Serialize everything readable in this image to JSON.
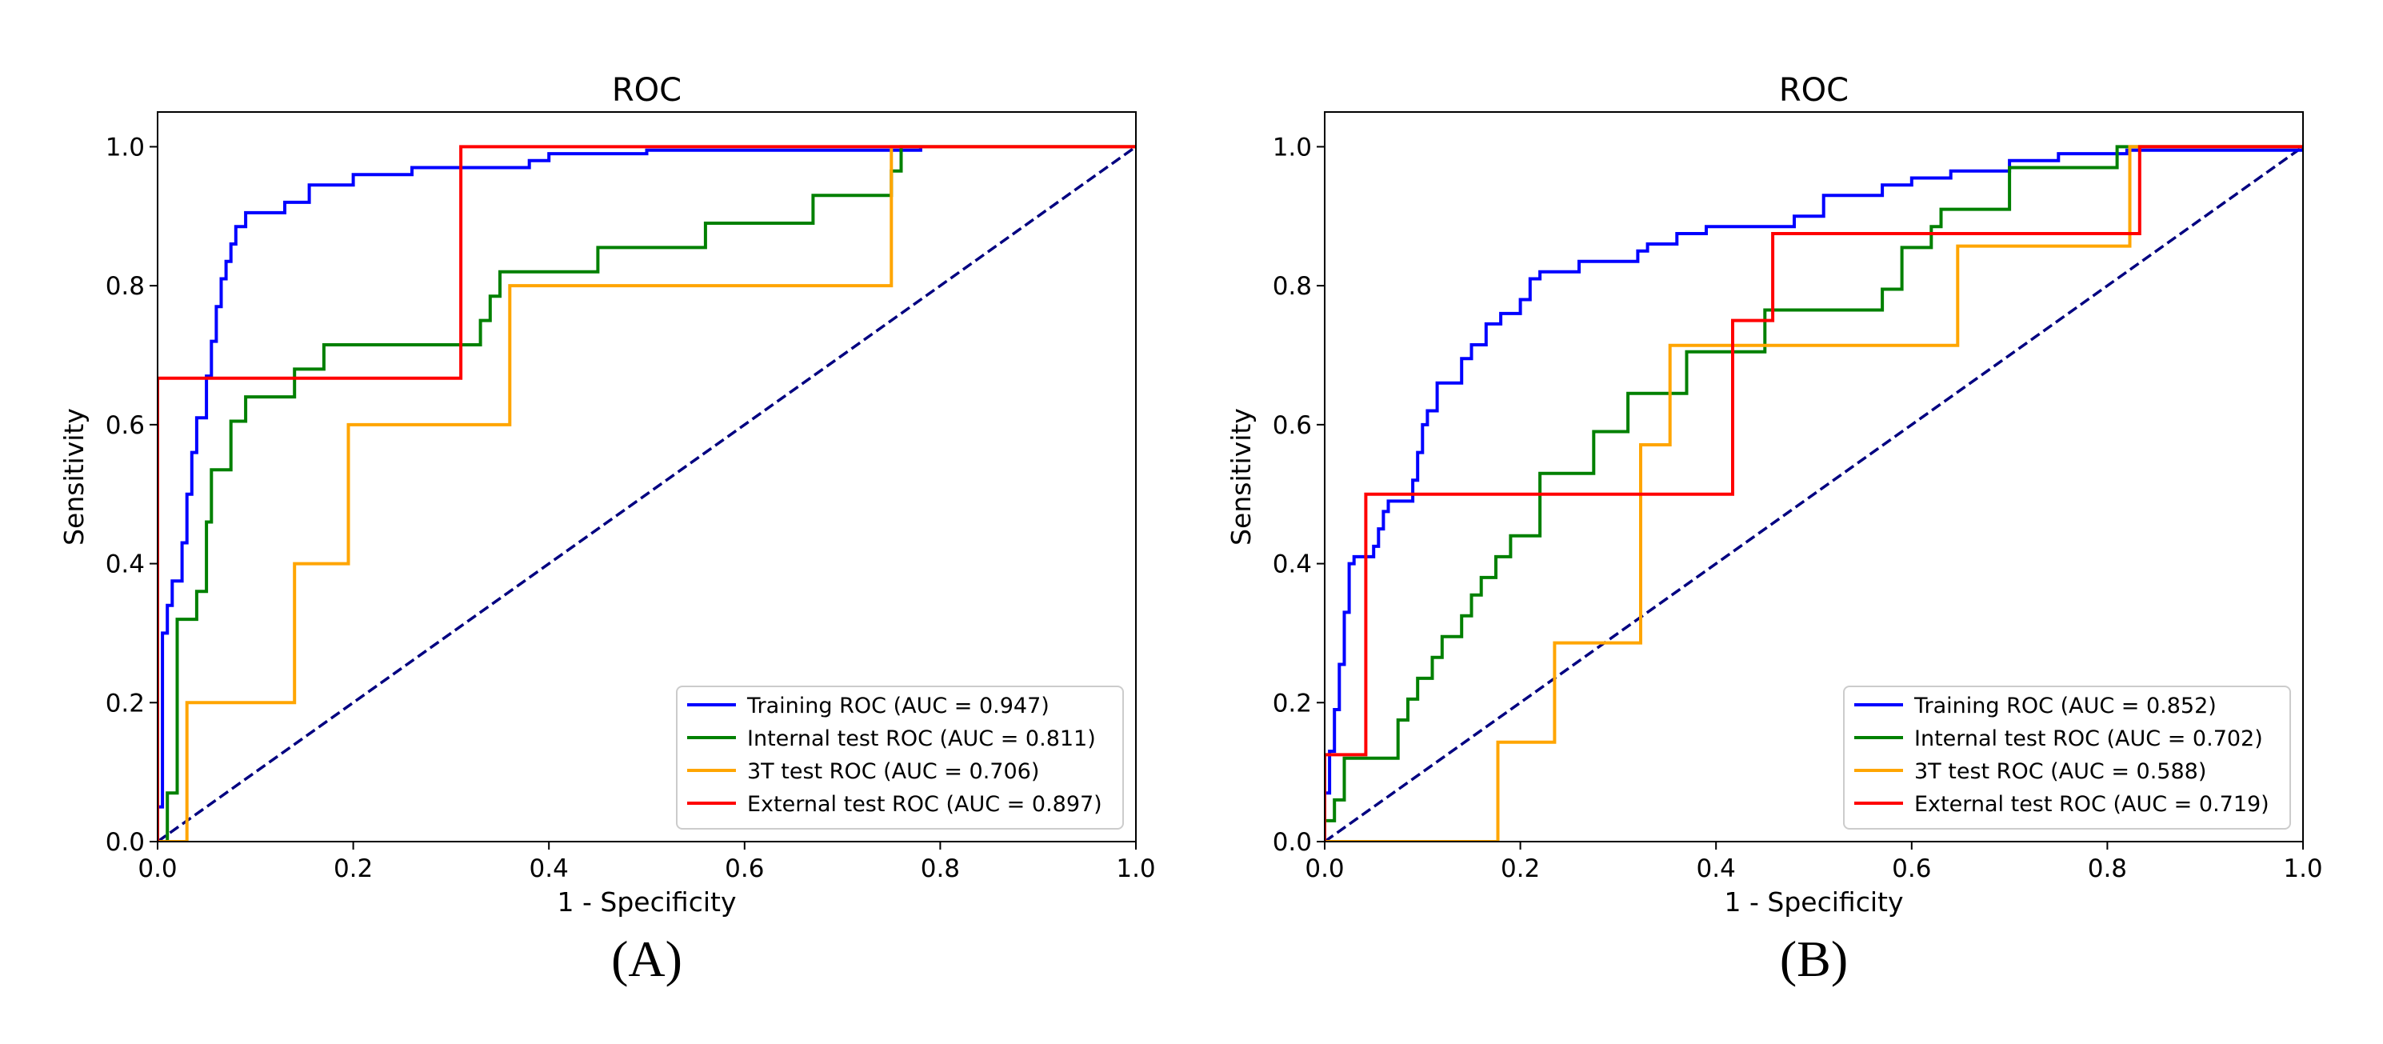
{
  "chart_data": [
    {
      "panel_label": "(A)",
      "type": "line",
      "title": "ROC",
      "xlabel": "1 - Specificity",
      "ylabel": "Sensitivity",
      "xlim": [
        0.0,
        1.0
      ],
      "ylim": [
        0.0,
        1.05
      ],
      "xticks": [
        "0.0",
        "0.2",
        "0.4",
        "0.6",
        "0.8",
        "1.0"
      ],
      "yticks": [
        "0.0",
        "0.2",
        "0.4",
        "0.6",
        "0.8",
        "1.0"
      ],
      "legend_position": "lower-right",
      "reference_line": {
        "name": "chance",
        "x": [
          0,
          1
        ],
        "y": [
          0,
          1
        ],
        "color": "#000080",
        "style": "dashed"
      },
      "series": [
        {
          "name": "Training ROC (AUC = 0.947)",
          "color": "#0000ff",
          "points": [
            [
              0,
              0
            ],
            [
              0,
              0.05
            ],
            [
              0.005,
              0.05
            ],
            [
              0.005,
              0.3
            ],
            [
              0.01,
              0.3
            ],
            [
              0.01,
              0.34
            ],
            [
              0.015,
              0.34
            ],
            [
              0.015,
              0.375
            ],
            [
              0.025,
              0.375
            ],
            [
              0.025,
              0.43
            ],
            [
              0.03,
              0.43
            ],
            [
              0.03,
              0.5
            ],
            [
              0.035,
              0.5
            ],
            [
              0.035,
              0.56
            ],
            [
              0.04,
              0.56
            ],
            [
              0.04,
              0.61
            ],
            [
              0.05,
              0.61
            ],
            [
              0.05,
              0.67
            ],
            [
              0.055,
              0.67
            ],
            [
              0.055,
              0.72
            ],
            [
              0.06,
              0.72
            ],
            [
              0.06,
              0.77
            ],
            [
              0.065,
              0.77
            ],
            [
              0.065,
              0.81
            ],
            [
              0.07,
              0.81
            ],
            [
              0.07,
              0.835
            ],
            [
              0.075,
              0.835
            ],
            [
              0.075,
              0.86
            ],
            [
              0.08,
              0.86
            ],
            [
              0.08,
              0.885
            ],
            [
              0.09,
              0.885
            ],
            [
              0.09,
              0.905
            ],
            [
              0.13,
              0.905
            ],
            [
              0.13,
              0.92
            ],
            [
              0.155,
              0.92
            ],
            [
              0.155,
              0.945
            ],
            [
              0.2,
              0.945
            ],
            [
              0.2,
              0.96
            ],
            [
              0.26,
              0.96
            ],
            [
              0.26,
              0.97
            ],
            [
              0.38,
              0.97
            ],
            [
              0.38,
              0.98
            ],
            [
              0.4,
              0.98
            ],
            [
              0.4,
              0.99
            ],
            [
              0.5,
              0.99
            ],
            [
              0.5,
              0.995
            ],
            [
              0.78,
              0.995
            ],
            [
              0.78,
              1.0
            ]
          ]
        },
        {
          "name": "Internal test ROC (AUC = 0.811)",
          "color": "#008000",
          "points": [
            [
              0,
              0
            ],
            [
              0.01,
              0
            ],
            [
              0.01,
              0.07
            ],
            [
              0.02,
              0.07
            ],
            [
              0.02,
              0.32
            ],
            [
              0.04,
              0.32
            ],
            [
              0.04,
              0.36
            ],
            [
              0.05,
              0.36
            ],
            [
              0.05,
              0.46
            ],
            [
              0.055,
              0.46
            ],
            [
              0.055,
              0.535
            ],
            [
              0.075,
              0.535
            ],
            [
              0.075,
              0.605
            ],
            [
              0.09,
              0.605
            ],
            [
              0.09,
              0.64
            ],
            [
              0.14,
              0.64
            ],
            [
              0.14,
              0.68
            ],
            [
              0.17,
              0.68
            ],
            [
              0.17,
              0.715
            ],
            [
              0.33,
              0.715
            ],
            [
              0.33,
              0.75
            ],
            [
              0.34,
              0.75
            ],
            [
              0.34,
              0.785
            ],
            [
              0.35,
              0.785
            ],
            [
              0.35,
              0.82
            ],
            [
              0.45,
              0.82
            ],
            [
              0.45,
              0.855
            ],
            [
              0.56,
              0.855
            ],
            [
              0.56,
              0.89
            ],
            [
              0.67,
              0.89
            ],
            [
              0.67,
              0.93
            ],
            [
              0.75,
              0.93
            ],
            [
              0.75,
              0.965
            ],
            [
              0.76,
              0.965
            ],
            [
              0.76,
              1.0
            ],
            [
              1.0,
              1.0
            ]
          ]
        },
        {
          "name": "3T test ROC (AUC = 0.706)",
          "color": "#ffa500",
          "points": [
            [
              0,
              0
            ],
            [
              0.03,
              0
            ],
            [
              0.03,
              0.2
            ],
            [
              0.14,
              0.2
            ],
            [
              0.14,
              0.4
            ],
            [
              0.195,
              0.4
            ],
            [
              0.195,
              0.6
            ],
            [
              0.36,
              0.6
            ],
            [
              0.36,
              0.8
            ],
            [
              0.75,
              0.8
            ],
            [
              0.75,
              1.0
            ],
            [
              1.0,
              1.0
            ]
          ]
        },
        {
          "name": "External test ROC (AUC = 0.897)",
          "color": "#ff0000",
          "points": [
            [
              0,
              0
            ],
            [
              0,
              0.667
            ],
            [
              0.31,
              0.667
            ],
            [
              0.31,
              1.0
            ],
            [
              1.0,
              1.0
            ]
          ]
        }
      ]
    },
    {
      "panel_label": "(B)",
      "type": "line",
      "title": "ROC",
      "xlabel": "1 - Specificity",
      "ylabel": "Sensitivity",
      "xlim": [
        0.0,
        1.0
      ],
      "ylim": [
        0.0,
        1.05
      ],
      "xticks": [
        "0.0",
        "0.2",
        "0.4",
        "0.6",
        "0.8",
        "1.0"
      ],
      "yticks": [
        "0.0",
        "0.2",
        "0.4",
        "0.6",
        "0.8",
        "1.0"
      ],
      "legend_position": "lower-right",
      "reference_line": {
        "name": "chance",
        "x": [
          0,
          1
        ],
        "y": [
          0,
          1
        ],
        "color": "#000080",
        "style": "dashed"
      },
      "series": [
        {
          "name": "Training ROC (AUC = 0.852)",
          "color": "#0000ff",
          "points": [
            [
              0,
              0
            ],
            [
              0,
              0.07
            ],
            [
              0.005,
              0.07
            ],
            [
              0.005,
              0.13
            ],
            [
              0.01,
              0.13
            ],
            [
              0.01,
              0.19
            ],
            [
              0.015,
              0.19
            ],
            [
              0.015,
              0.255
            ],
            [
              0.02,
              0.255
            ],
            [
              0.02,
              0.33
            ],
            [
              0.025,
              0.33
            ],
            [
              0.025,
              0.4
            ],
            [
              0.03,
              0.4
            ],
            [
              0.03,
              0.41
            ],
            [
              0.05,
              0.41
            ],
            [
              0.05,
              0.425
            ],
            [
              0.055,
              0.425
            ],
            [
              0.055,
              0.45
            ],
            [
              0.06,
              0.45
            ],
            [
              0.06,
              0.475
            ],
            [
              0.065,
              0.475
            ],
            [
              0.065,
              0.49
            ],
            [
              0.09,
              0.49
            ],
            [
              0.09,
              0.52
            ],
            [
              0.095,
              0.52
            ],
            [
              0.095,
              0.56
            ],
            [
              0.1,
              0.56
            ],
            [
              0.1,
              0.6
            ],
            [
              0.105,
              0.6
            ],
            [
              0.105,
              0.62
            ],
            [
              0.115,
              0.62
            ],
            [
              0.115,
              0.66
            ],
            [
              0.14,
              0.66
            ],
            [
              0.14,
              0.695
            ],
            [
              0.15,
              0.695
            ],
            [
              0.15,
              0.715
            ],
            [
              0.165,
              0.715
            ],
            [
              0.165,
              0.745
            ],
            [
              0.18,
              0.745
            ],
            [
              0.18,
              0.76
            ],
            [
              0.2,
              0.76
            ],
            [
              0.2,
              0.78
            ],
            [
              0.21,
              0.78
            ],
            [
              0.21,
              0.81
            ],
            [
              0.22,
              0.81
            ],
            [
              0.22,
              0.82
            ],
            [
              0.26,
              0.82
            ],
            [
              0.26,
              0.835
            ],
            [
              0.32,
              0.835
            ],
            [
              0.32,
              0.85
            ],
            [
              0.33,
              0.85
            ],
            [
              0.33,
              0.86
            ],
            [
              0.36,
              0.86
            ],
            [
              0.36,
              0.875
            ],
            [
              0.39,
              0.875
            ],
            [
              0.39,
              0.885
            ],
            [
              0.48,
              0.885
            ],
            [
              0.48,
              0.9
            ],
            [
              0.51,
              0.9
            ],
            [
              0.51,
              0.93
            ],
            [
              0.57,
              0.93
            ],
            [
              0.57,
              0.945
            ],
            [
              0.6,
              0.945
            ],
            [
              0.6,
              0.955
            ],
            [
              0.64,
              0.955
            ],
            [
              0.64,
              0.965
            ],
            [
              0.7,
              0.965
            ],
            [
              0.7,
              0.98
            ],
            [
              0.75,
              0.98
            ],
            [
              0.75,
              0.99
            ],
            [
              0.82,
              0.99
            ],
            [
              0.82,
              0.995
            ],
            [
              1.0,
              0.995
            ],
            [
              1.0,
              1.0
            ]
          ]
        },
        {
          "name": "Internal test ROC (AUC = 0.702)",
          "color": "#008000",
          "points": [
            [
              0,
              0
            ],
            [
              0,
              0.03
            ],
            [
              0.01,
              0.03
            ],
            [
              0.01,
              0.06
            ],
            [
              0.02,
              0.06
            ],
            [
              0.02,
              0.12
            ],
            [
              0.075,
              0.12
            ],
            [
              0.075,
              0.175
            ],
            [
              0.085,
              0.175
            ],
            [
              0.085,
              0.205
            ],
            [
              0.095,
              0.205
            ],
            [
              0.095,
              0.235
            ],
            [
              0.11,
              0.235
            ],
            [
              0.11,
              0.265
            ],
            [
              0.12,
              0.265
            ],
            [
              0.12,
              0.295
            ],
            [
              0.14,
              0.295
            ],
            [
              0.14,
              0.325
            ],
            [
              0.15,
              0.325
            ],
            [
              0.15,
              0.355
            ],
            [
              0.16,
              0.355
            ],
            [
              0.16,
              0.38
            ],
            [
              0.175,
              0.38
            ],
            [
              0.175,
              0.41
            ],
            [
              0.19,
              0.41
            ],
            [
              0.19,
              0.44
            ],
            [
              0.22,
              0.44
            ],
            [
              0.22,
              0.53
            ],
            [
              0.275,
              0.53
            ],
            [
              0.275,
              0.59
            ],
            [
              0.31,
              0.59
            ],
            [
              0.31,
              0.645
            ],
            [
              0.37,
              0.645
            ],
            [
              0.37,
              0.705
            ],
            [
              0.45,
              0.705
            ],
            [
              0.45,
              0.765
            ],
            [
              0.57,
              0.765
            ],
            [
              0.57,
              0.795
            ],
            [
              0.59,
              0.795
            ],
            [
              0.59,
              0.855
            ],
            [
              0.62,
              0.855
            ],
            [
              0.62,
              0.885
            ],
            [
              0.63,
              0.885
            ],
            [
              0.63,
              0.91
            ],
            [
              0.7,
              0.91
            ],
            [
              0.7,
              0.97
            ],
            [
              0.81,
              0.97
            ],
            [
              0.81,
              1.0
            ],
            [
              1.0,
              1.0
            ]
          ]
        },
        {
          "name": "3T test ROC (AUC = 0.588)",
          "color": "#ffa500",
          "points": [
            [
              0,
              0
            ],
            [
              0.177,
              0
            ],
            [
              0.177,
              0.143
            ],
            [
              0.235,
              0.143
            ],
            [
              0.235,
              0.286
            ],
            [
              0.323,
              0.286
            ],
            [
              0.323,
              0.571
            ],
            [
              0.353,
              0.571
            ],
            [
              0.353,
              0.714
            ],
            [
              0.647,
              0.714
            ],
            [
              0.647,
              0.857
            ],
            [
              0.823,
              0.857
            ],
            [
              0.823,
              1.0
            ],
            [
              1.0,
              1.0
            ]
          ]
        },
        {
          "name": "External test ROC (AUC = 0.719)",
          "color": "#ff0000",
          "points": [
            [
              0,
              0
            ],
            [
              0,
              0.125
            ],
            [
              0.042,
              0.125
            ],
            [
              0.042,
              0.5
            ],
            [
              0.417,
              0.5
            ],
            [
              0.417,
              0.75
            ],
            [
              0.458,
              0.75
            ],
            [
              0.458,
              0.875
            ],
            [
              0.833,
              0.875
            ],
            [
              0.833,
              1.0
            ],
            [
              1.0,
              1.0
            ]
          ]
        }
      ]
    }
  ]
}
